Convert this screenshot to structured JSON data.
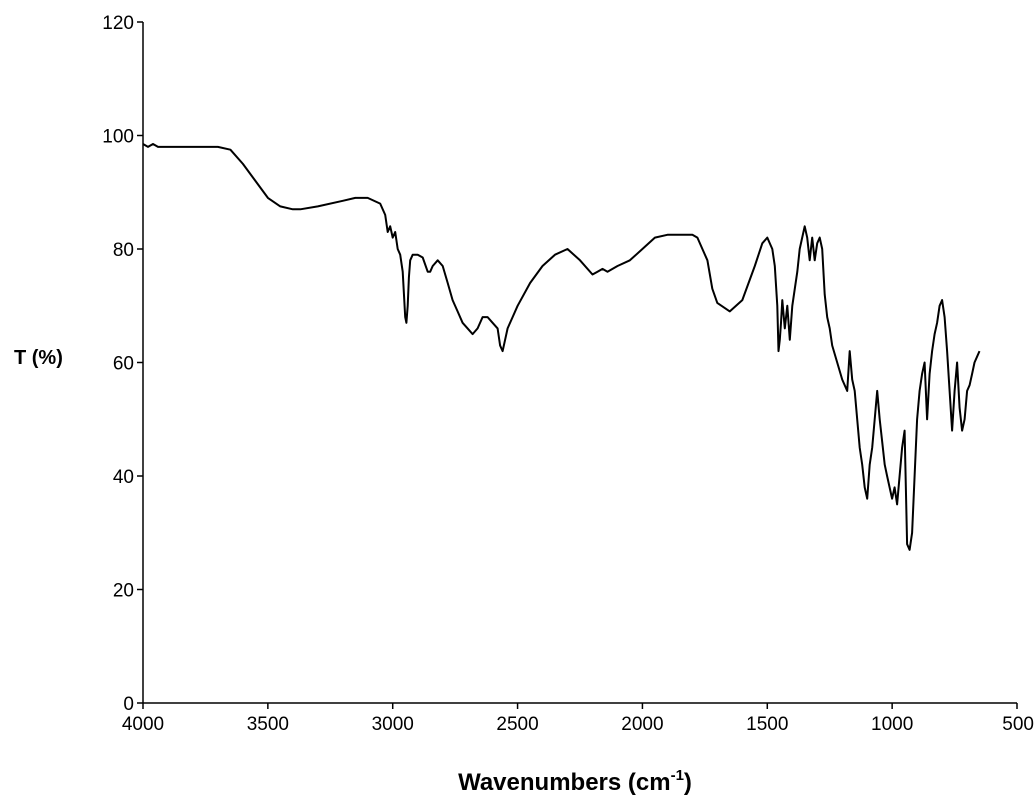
{
  "chart_data": {
    "type": "line",
    "title": "",
    "xlabel": "Wavenumbers (cm",
    "xlabel_superscript": "-1",
    "xlabel_suffix": ")",
    "ylabel": "T  (%)",
    "xlim": [
      4000,
      500
    ],
    "ylim": [
      0,
      120
    ],
    "x_ticks": [
      4000,
      3500,
      3000,
      2500,
      2000,
      1500,
      1000,
      500
    ],
    "x_tick_labels": [
      "4000",
      "3500",
      "3000",
      "2500",
      "2000",
      "1500",
      "1000",
      "500"
    ],
    "y_ticks": [
      0,
      20,
      40,
      60,
      80,
      100,
      120
    ],
    "y_tick_labels": [
      "0",
      "20",
      "40",
      "60",
      "80",
      "100",
      "120"
    ],
    "grid": false,
    "legend": "none",
    "line_color": "#000000",
    "series": [
      {
        "x": [
          4000,
          3980,
          3960,
          3940,
          3900,
          3800,
          3700,
          3650,
          3600,
          3550,
          3500,
          3450,
          3400,
          3370,
          3300,
          3200,
          3150,
          3100,
          3050,
          3030,
          3020,
          3010,
          3000,
          2990,
          2980,
          2970,
          2960,
          2950,
          2945,
          2940,
          2935,
          2930,
          2920,
          2900,
          2880,
          2860,
          2850,
          2840,
          2820,
          2800,
          2780,
          2760,
          2740,
          2720,
          2700,
          2680,
          2660,
          2640,
          2620,
          2600,
          2580,
          2570,
          2560,
          2550,
          2540,
          2520,
          2500,
          2450,
          2400,
          2350,
          2300,
          2250,
          2200,
          2180,
          2160,
          2140,
          2100,
          2050,
          2000,
          1950,
          1900,
          1850,
          1800,
          1780,
          1760,
          1740,
          1720,
          1700,
          1650,
          1600,
          1550,
          1520,
          1500,
          1480,
          1470,
          1460,
          1455,
          1450,
          1445,
          1440,
          1430,
          1420,
          1410,
          1400,
          1390,
          1380,
          1370,
          1360,
          1350,
          1340,
          1330,
          1320,
          1310,
          1300,
          1290,
          1280,
          1270,
          1260,
          1250,
          1240,
          1220,
          1200,
          1180,
          1170,
          1160,
          1150,
          1140,
          1130,
          1120,
          1110,
          1100,
          1090,
          1080,
          1070,
          1060,
          1050,
          1040,
          1030,
          1020,
          1010,
          1000,
          990,
          980,
          970,
          960,
          950,
          940,
          930,
          920,
          910,
          900,
          890,
          880,
          870,
          860,
          850,
          840,
          830,
          820,
          810,
          800,
          790,
          780,
          770,
          760,
          750,
          740,
          730,
          720,
          710,
          700,
          690,
          680,
          670,
          660,
          650
        ],
        "y": [
          98.5,
          98,
          98.5,
          98,
          98,
          98,
          98,
          97.5,
          95,
          92,
          89,
          87.5,
          87,
          87,
          87.5,
          88.5,
          89,
          89,
          88,
          86,
          83,
          84,
          82,
          83,
          80,
          79,
          76,
          68,
          67,
          70,
          75,
          78,
          79,
          79,
          78.5,
          76,
          76,
          77,
          78,
          77,
          74,
          71,
          69,
          67,
          66,
          65,
          66,
          68,
          68,
          67,
          66,
          63,
          62,
          64,
          66,
          68,
          70,
          74,
          77,
          79,
          80,
          78,
          75.5,
          76,
          76.5,
          76,
          77,
          78,
          80,
          82,
          82.5,
          82.5,
          82.5,
          82,
          80,
          78,
          73,
          70.5,
          69,
          71,
          77,
          81,
          82,
          80,
          77,
          70,
          62,
          64,
          67,
          71,
          66,
          70,
          64,
          70,
          73,
          76,
          80,
          82,
          84,
          82,
          78,
          82,
          78,
          81,
          82,
          80,
          72,
          68,
          66,
          63,
          60,
          57,
          55,
          62,
          57,
          55,
          50,
          45,
          42,
          38,
          36,
          42,
          45,
          50,
          55,
          50,
          46,
          42,
          40,
          38,
          36,
          38,
          35,
          40,
          45,
          48,
          28,
          27,
          30,
          40,
          50,
          55,
          58,
          60,
          50,
          58,
          62,
          65,
          67,
          70,
          71,
          68,
          62,
          55,
          48,
          55,
          60,
          52,
          48,
          50,
          55,
          56,
          58,
          60,
          61,
          62
        ]
      }
    ]
  }
}
